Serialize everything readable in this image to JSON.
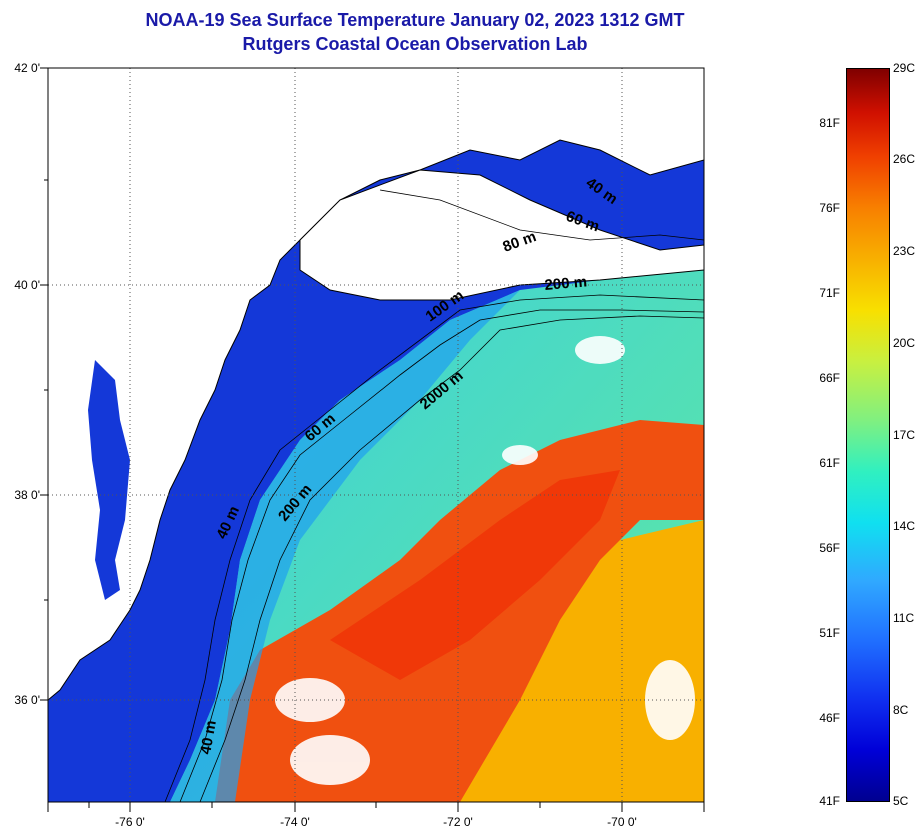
{
  "title": {
    "line1": "NOAA-19 Sea Surface Temperature January 02, 2023 1312 GMT",
    "line2": "Rutgers Coastal Ocean Observation Lab"
  },
  "map": {
    "lat_labels": [
      "42 0'",
      "40 0'",
      "38 0'",
      "36 0'"
    ],
    "lon_labels": [
      "-76 0'",
      "-74 0'",
      "-72 0'",
      "-70 0'"
    ],
    "lat_values": [
      42,
      40,
      38,
      36
    ],
    "lon_values": [
      -76,
      -74,
      -72,
      -70
    ],
    "lat_range": [
      35.0,
      42.0
    ],
    "lon_range": [
      -77.0,
      -69.0
    ],
    "grid": "dotted",
    "isobath_labels": [
      "40 m",
      "60 m",
      "80 m",
      "200 m",
      "100 m",
      "2000 m",
      "60 m",
      "200 m",
      "40 m",
      "40 m"
    ],
    "colors": {
      "land": "#ffffff",
      "coast_water": "#1030d8",
      "shelf_water": "#30d0e8",
      "gulf_stream": "#f04810",
      "sargasso": "#f8a000"
    }
  },
  "colorbar": {
    "fahrenheit": [
      "81F",
      "76F",
      "71F",
      "66F",
      "61F",
      "56F",
      "51F",
      "46F",
      "41F"
    ],
    "celsius": [
      "29C",
      "26C",
      "23C",
      "20C",
      "17C",
      "14C",
      "11C",
      "8C",
      "5C"
    ],
    "range_c": [
      5,
      29
    ]
  }
}
